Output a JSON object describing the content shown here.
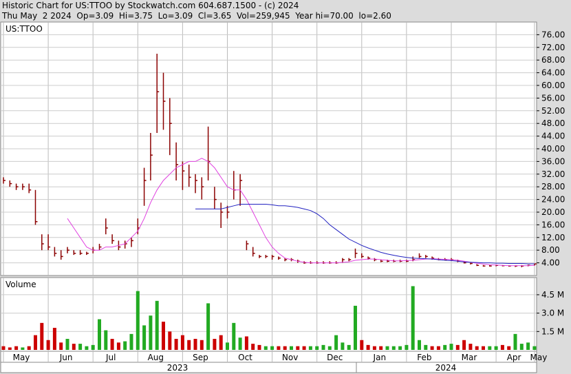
{
  "header": {
    "line1": "Historic Chart for US:TTOO by Stockwatch.com 604.687.1500 - (c) 2024",
    "line2": "Thu May  2 2024  Op=3.09  Hi=3.75  Lo=3.09  Cl=3.65  Vol=259,945  Year hi=70.00  lo=2.60"
  },
  "chart_data": [
    {
      "type": "ohlc",
      "label": "US:TTOO",
      "color": "#8b0000",
      "categories": [
        "May",
        null,
        null,
        null,
        null,
        null,
        null,
        "Jun",
        null,
        null,
        null,
        null,
        null,
        null,
        "Jul",
        null,
        null,
        null,
        null,
        null,
        null,
        "Aug",
        null,
        null,
        null,
        null,
        null,
        null,
        "Sep",
        null,
        null,
        null,
        null,
        null,
        null,
        "Oct",
        null,
        null,
        null,
        null,
        null,
        null,
        "Nov",
        null,
        null,
        null,
        null,
        null,
        null,
        "Dec",
        null,
        null,
        null,
        null,
        null,
        null,
        "Jan",
        null,
        null,
        null,
        null,
        null,
        null,
        "Feb",
        null,
        null,
        null,
        null,
        null,
        null,
        "Mar",
        null,
        null,
        null,
        null,
        null,
        null,
        "Apr",
        null,
        null,
        null,
        null,
        null,
        "May"
      ],
      "year_labels": [
        "2023",
        "2024"
      ],
      "close": [
        30,
        29,
        28,
        28,
        27,
        17,
        10,
        9,
        7,
        6,
        8,
        7,
        7,
        7,
        8,
        9,
        15,
        11,
        9,
        10,
        11,
        15,
        30,
        38,
        58,
        55,
        48,
        35,
        33,
        31,
        30,
        28,
        36,
        24,
        20,
        20,
        27,
        30,
        10,
        7,
        6,
        6,
        6,
        5.5,
        5,
        5,
        4.5,
        4,
        4,
        4,
        4,
        4,
        4,
        5,
        5,
        7,
        6,
        5.5,
        5,
        4.5,
        4.5,
        4.5,
        4.5,
        4.5,
        5,
        6,
        6,
        5.5,
        5,
        5,
        5,
        4.5,
        4,
        3.8,
        3.2,
        3,
        3,
        3.2,
        3.1,
        3,
        3,
        3,
        3.2,
        3.65
      ],
      "high": [
        31,
        30,
        29,
        29,
        29,
        27,
        13,
        13,
        9,
        8,
        9,
        8,
        8,
        7.5,
        9,
        10,
        18,
        13,
        11,
        11,
        12,
        18,
        34,
        45,
        70,
        64,
        56,
        42,
        36,
        35,
        32,
        31,
        47,
        28,
        23,
        22,
        33,
        32,
        11,
        9,
        6.5,
        6.5,
        6.5,
        6,
        5.5,
        5.5,
        5,
        4.5,
        4.5,
        4.5,
        4.5,
        4.5,
        4.5,
        5.5,
        5.5,
        8.5,
        7,
        6,
        5.5,
        5,
        5,
        5,
        5,
        5,
        6,
        7,
        6.5,
        6,
        5.5,
        5.5,
        5.5,
        5,
        4.5,
        4,
        3.6,
        3.3,
        3.3,
        3.4,
        3.3,
        3.2,
        3.2,
        3.3,
        3.4,
        3.75
      ],
      "low": [
        29,
        28,
        27,
        27,
        26,
        16,
        8,
        8,
        6,
        5,
        7,
        6.5,
        6.5,
        6.5,
        7,
        8,
        13,
        10,
        8,
        8.5,
        9,
        13,
        22,
        30,
        45,
        46,
        38,
        30,
        27,
        28,
        26,
        24,
        30,
        21,
        15,
        18,
        24,
        22,
        8,
        6,
        5.5,
        5.5,
        5,
        5,
        4.5,
        4.5,
        4,
        3.7,
        3.7,
        3.7,
        3.7,
        3.7,
        3.7,
        4,
        4.5,
        5.5,
        5.5,
        5,
        4.5,
        4.2,
        4.2,
        4.2,
        4.2,
        4.2,
        4.5,
        5.5,
        5.5,
        5,
        4.8,
        4.8,
        4.6,
        4.2,
        3.8,
        3.5,
        3,
        2.8,
        2.8,
        2.9,
        2.9,
        2.8,
        2.7,
        2.6,
        2.9,
        3.09
      ],
      "lines": [
        {
          "color": "#e040e0",
          "values": [
            null,
            null,
            null,
            null,
            null,
            null,
            null,
            null,
            null,
            null,
            18,
            15,
            12,
            9,
            8,
            8,
            9,
            9,
            9.5,
            10,
            12,
            14,
            18,
            23,
            27,
            30,
            32,
            34,
            35,
            36,
            36,
            37,
            36,
            34,
            31,
            28,
            27,
            27,
            24,
            20,
            16,
            12,
            9,
            7,
            5.5,
            5,
            4.5,
            4.2,
            4,
            4,
            4,
            4,
            4,
            4.2,
            4.3,
            4.8,
            5,
            5.2,
            5.2,
            5,
            4.8,
            4.6,
            4.6,
            4.7,
            4.8,
            5,
            5.2,
            5.3,
            5.2,
            5.1,
            5,
            4.8,
            4.5,
            4.2,
            3.9,
            3.6,
            3.4,
            3.3,
            3.2,
            3.1,
            3.1,
            3.1,
            3.1,
            3.2
          ]
        },
        {
          "color": "#2020c0",
          "values": [
            null,
            null,
            null,
            null,
            null,
            null,
            null,
            null,
            null,
            null,
            null,
            null,
            null,
            null,
            null,
            null,
            null,
            null,
            null,
            null,
            null,
            null,
            null,
            null,
            null,
            null,
            null,
            null,
            null,
            null,
            21,
            21,
            21,
            21,
            21,
            21.5,
            22,
            22.5,
            22.5,
            22.5,
            22.5,
            22.5,
            22.3,
            22,
            22,
            21.8,
            21.5,
            21,
            20.5,
            19.5,
            18,
            16,
            14.5,
            13,
            11.5,
            10.5,
            9.5,
            8.7,
            8,
            7.3,
            6.8,
            6.4,
            6,
            5.7,
            5.5,
            5.4,
            5.3,
            5.2,
            5,
            4.8,
            4.7,
            4.5,
            4.3,
            4.2,
            4.1,
            4,
            4,
            3.9,
            3.9,
            3.8,
            3.8,
            3.8,
            3.7,
            3.7
          ]
        }
      ],
      "ylim": [
        0,
        80
      ],
      "yticks": [
        {
          "value": 4,
          "label": "4.00"
        },
        {
          "value": 8,
          "label": "8.00"
        },
        {
          "value": 12,
          "label": "12.00"
        },
        {
          "value": 16,
          "label": "16.00"
        },
        {
          "value": 20,
          "label": "20.00"
        },
        {
          "value": 24,
          "label": "24.00"
        },
        {
          "value": 28,
          "label": "28.00"
        },
        {
          "value": 32,
          "label": "32.00"
        },
        {
          "value": 36,
          "label": "36.00"
        },
        {
          "value": 40,
          "label": "40.00"
        },
        {
          "value": 44,
          "label": "44.00"
        },
        {
          "value": 48,
          "label": "48.00"
        },
        {
          "value": 52,
          "label": "52.00"
        },
        {
          "value": 56,
          "label": "56.00"
        },
        {
          "value": 60,
          "label": "60.00"
        },
        {
          "value": 64,
          "label": "64.00"
        },
        {
          "value": 68,
          "label": "68.00"
        },
        {
          "value": 72,
          "label": "72.00"
        },
        {
          "value": 76,
          "label": "76.00"
        }
      ],
      "grid": true
    },
    {
      "type": "volume",
      "label": "Volume",
      "up_color": "#22aa22",
      "down_color": "#cc0000",
      "values": [
        0.3,
        0.2,
        0.3,
        0.2,
        0.3,
        1.2,
        2.2,
        0.8,
        1.8,
        0.6,
        0.9,
        0.5,
        0.5,
        0.3,
        0.4,
        2.5,
        1.6,
        0.9,
        0.6,
        0.7,
        1.3,
        4.8,
        2.0,
        2.8,
        4.0,
        2.3,
        1.5,
        0.9,
        1.2,
        0.8,
        0.9,
        0.8,
        3.8,
        0.9,
        1.2,
        0.6,
        2.2,
        1.0,
        1.1,
        0.5,
        0.4,
        0.3,
        0.3,
        0.3,
        0.3,
        0.3,
        0.3,
        0.3,
        0.3,
        0.3,
        0.4,
        0.3,
        1.2,
        0.6,
        0.4,
        3.6,
        0.8,
        0.4,
        0.3,
        0.3,
        0.3,
        0.3,
        0.3,
        0.4,
        5.2,
        0.8,
        0.4,
        0.3,
        0.3,
        0.4,
        0.5,
        0.4,
        0.8,
        0.5,
        0.3,
        0.3,
        0.3,
        0.3,
        0.4,
        0.3,
        1.3,
        0.5,
        0.6,
        0.3
      ],
      "ylim": [
        0,
        5.9
      ],
      "yticks": [
        {
          "value": 1.5,
          "label": "1.5 M"
        },
        {
          "value": 3,
          "label": "3.0 M"
        },
        {
          "value": 4.5,
          "label": "4.5 M"
        }
      ],
      "grid": true
    }
  ]
}
